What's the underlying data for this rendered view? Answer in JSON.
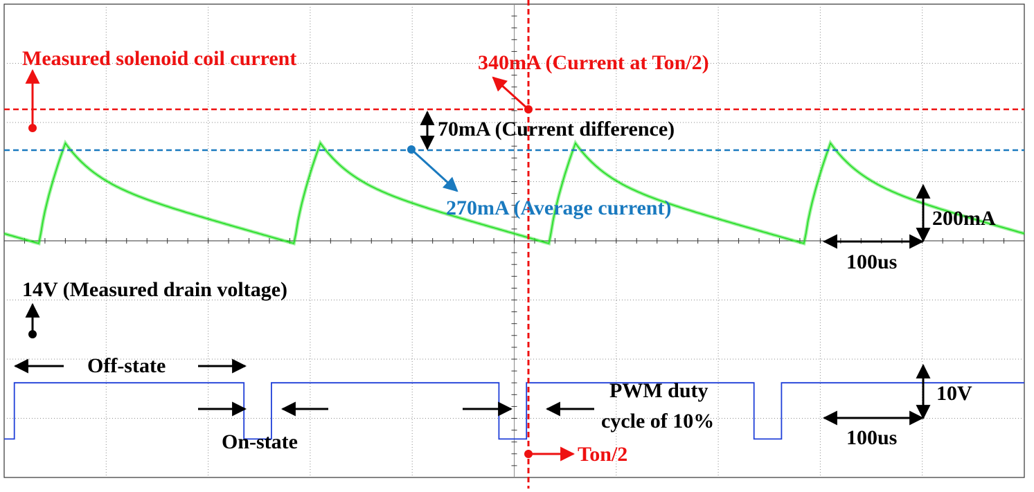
{
  "chart_data": [
    {
      "type": "line",
      "title": "",
      "trace_name": "Measured solenoid coil current",
      "trace_color": "#22dd22",
      "scale_label": "200mA",
      "time_label": "100us",
      "period_divs": 2.5,
      "duty_cycle": 0.1,
      "waveform": {
        "peak_div": 2.65,
        "trough_div": 0.95,
        "pre_trough_div": 2.05
      },
      "annotations": {
        "peak_label": "340mA (Current at Ton/2)",
        "peak_value_mA": 340,
        "peak_color": "#ee1111",
        "average_label": "270mA (Average current)",
        "average_value_mA": 270,
        "average_color": "#1a7abf",
        "difference_label": "70mA (Current difference)",
        "difference_value_mA": 70
      }
    },
    {
      "type": "line",
      "title": "",
      "trace_name": "Measured drain voltage",
      "trace_color": "#1f3fd8",
      "label": "14V (Measured drain voltage)",
      "high_value_V": 14,
      "scale_label": "10V",
      "time_label": "100us",
      "off_label": "Off-state",
      "on_label": "On-state",
      "duty_label_line1": "PWM duty",
      "duty_label_line2": "cycle of 10%",
      "duty_cycle_percent": 10,
      "marker_label": "Ton/2",
      "marker_color": "#ee1111"
    }
  ]
}
